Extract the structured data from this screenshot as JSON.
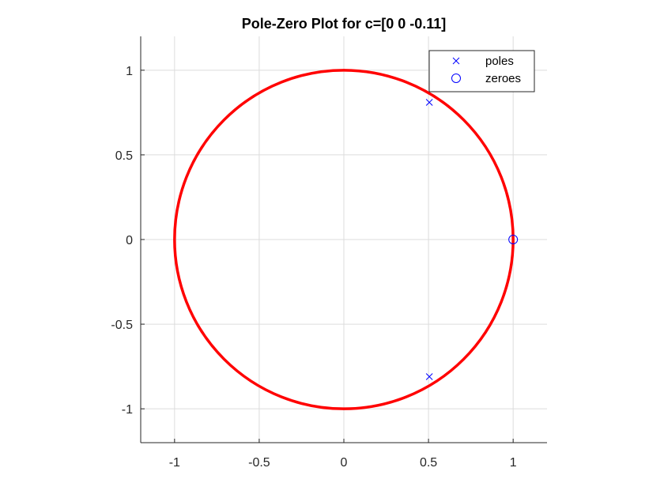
{
  "chart_data": {
    "type": "scatter",
    "title": "Pole-Zero Plot for c=[0 0 -0.11]",
    "xlabel": "",
    "ylabel": "",
    "xlim": [
      -1.2,
      1.2
    ],
    "ylim": [
      -1.2,
      1.2
    ],
    "grid": true,
    "legend_position": "top-right",
    "x_ticks": [
      -1,
      -0.5,
      0,
      0.5,
      1
    ],
    "x_tick_labels": [
      "-1",
      "-0.5",
      "0",
      "0.5",
      "1"
    ],
    "y_ticks": [
      -1,
      -0.5,
      0,
      0.5,
      1
    ],
    "y_tick_labels": [
      "-1",
      "-0.5",
      "0",
      "0.5",
      "1"
    ],
    "unit_circle": {
      "center": [
        0,
        0
      ],
      "radius": 1,
      "color": "#ff0000"
    },
    "series": [
      {
        "name": "poles",
        "marker": "x",
        "color": "#0000ff",
        "points": [
          [
            0.505,
            0.81
          ],
          [
            0.505,
            -0.81
          ]
        ]
      },
      {
        "name": "zeroes",
        "marker": "o",
        "color": "#0000ff",
        "points": [
          [
            1.0,
            0.0
          ]
        ]
      }
    ]
  }
}
